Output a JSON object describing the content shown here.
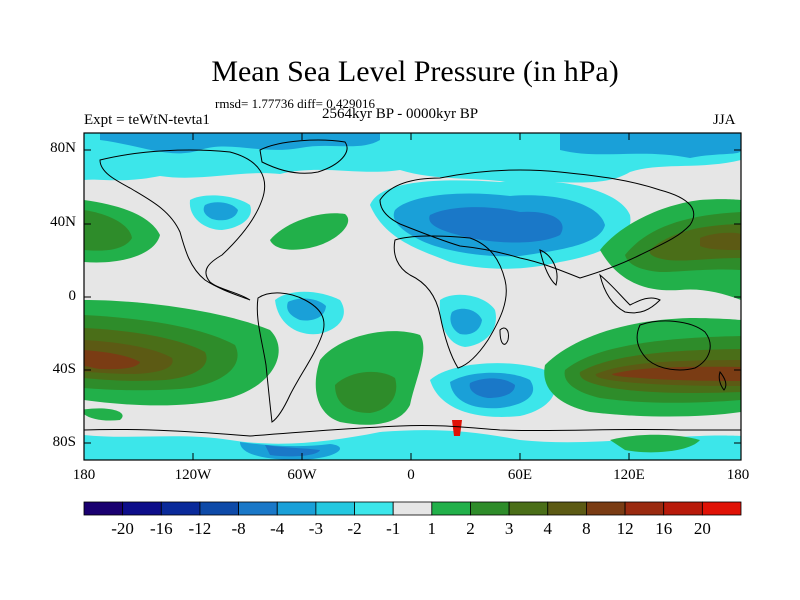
{
  "title": "Mean Sea Level Pressure (in hPa)",
  "stats": "rmsd= 1.77736 diff= 0.429016",
  "experiment": "Expt = teWtN-tevta1",
  "period": "2564kyr BP - 0000kyr BP",
  "season": "JJA",
  "lat_labels": [
    "80N",
    "40N",
    "0",
    "40S",
    "80S"
  ],
  "lon_labels": [
    "180",
    "120W",
    "60W",
    "0",
    "60E",
    "120E",
    "180"
  ],
  "colorbar": {
    "labels": [
      "-20",
      "-16",
      "-12",
      "-8",
      "-4",
      "-3",
      "-2",
      "-1",
      "1",
      "2",
      "3",
      "4",
      "8",
      "12",
      "16",
      "20"
    ],
    "colors": [
      "#1a0070",
      "#0e0e8a",
      "#0a2a9a",
      "#0e4aa8",
      "#1a78c8",
      "#1aa0d8",
      "#24c8e0",
      "#3ce6ea",
      "#e6e6e6",
      "#22b04a",
      "#2e8c2a",
      "#4a6e18",
      "#5c5a14",
      "#7a3c14",
      "#9a2a10",
      "#b81a0a",
      "#e01206"
    ]
  },
  "colors": {
    "land_outline": "#000000",
    "frame": "#000000"
  }
}
